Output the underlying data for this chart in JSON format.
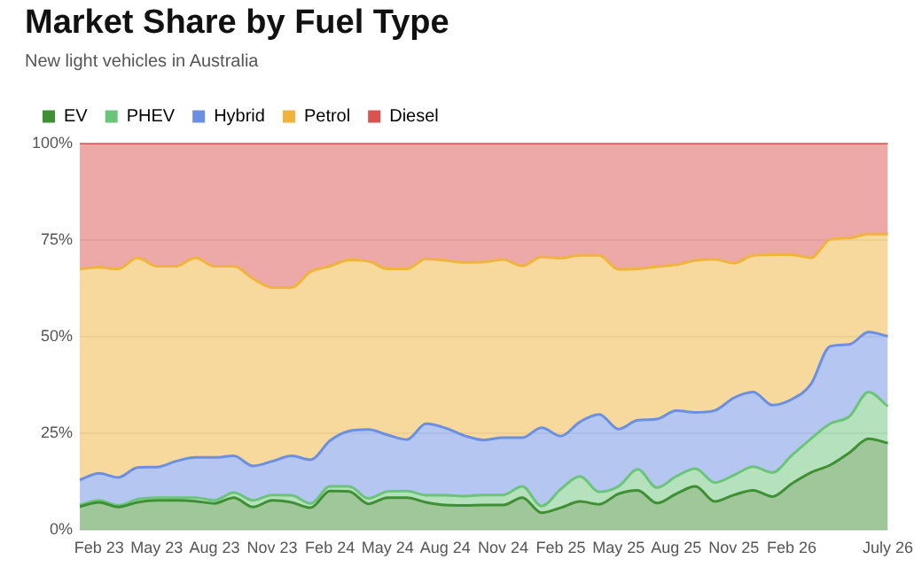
{
  "chart_data": {
    "type": "area",
    "title": "Market Share by Fuel Type",
    "subtitle": "New light vehicles in Australia",
    "stacked": true,
    "grid": "y",
    "legend": "top left",
    "marker": "none",
    "categories": [
      null,
      "Feb 23",
      null,
      null,
      "May 23",
      null,
      null,
      "Aug 23",
      null,
      null,
      "Nov 23",
      null,
      null,
      "Feb 24",
      null,
      null,
      "May 24",
      null,
      null,
      "Aug 24",
      null,
      null,
      "Nov 24",
      null,
      null,
      "Feb 25",
      null,
      null,
      "May 25",
      null,
      null,
      "Aug 25",
      null,
      null,
      "Nov 25",
      null,
      null,
      "Feb 26",
      null,
      null,
      null,
      null,
      "July 26"
    ],
    "ylim": [
      0,
      100
    ],
    "yticks": [
      {
        "value": 0,
        "label": "0%"
      },
      {
        "value": 25,
        "label": "25%"
      },
      {
        "value": 50,
        "label": "50%"
      },
      {
        "value": 75,
        "label": "75%"
      },
      {
        "value": 100,
        "label": "100%"
      }
    ],
    "series": [
      {
        "name": "EV",
        "color": "#3f8f34",
        "values": [
          6.1,
          7.2,
          6.0,
          7.2,
          7.7,
          7.7,
          7.5,
          6.9,
          8.4,
          6.0,
          7.7,
          7.2,
          5.8,
          10.1,
          10.0,
          6.8,
          8.4,
          8.4,
          7.2,
          6.5,
          6.4,
          6.5,
          6.5,
          8.4,
          4.5,
          5.8,
          7.4,
          6.7,
          9.4,
          10.3,
          7.0,
          9.4,
          11.3,
          7.4,
          9.1,
          10.3,
          8.7,
          12.0,
          14.9,
          16.8,
          20.0,
          23.6,
          22.5
        ]
      },
      {
        "name": "PHEV",
        "color": "#6cc47a",
        "values": [
          0.4,
          0.5,
          0.4,
          0.8,
          0.7,
          0.7,
          0.9,
          0.8,
          1.3,
          1.7,
          1.4,
          1.8,
          1.1,
          1.2,
          1.3,
          1.4,
          1.6,
          1.7,
          1.8,
          2.5,
          2.4,
          2.6,
          2.6,
          2.9,
          1.7,
          4.8,
          6.5,
          3.2,
          1.9,
          5.4,
          4.0,
          4.5,
          4.6,
          4.9,
          5.1,
          6.1,
          6.2,
          7.3,
          8.7,
          10.7,
          9.4,
          12.1,
          9.5
        ]
      },
      {
        "name": "Hybrid",
        "color": "#6b8fe3",
        "values": [
          6.5,
          7.0,
          7.2,
          8.2,
          7.9,
          9.4,
          10.4,
          11.1,
          9.5,
          8.9,
          8.7,
          10.2,
          11.3,
          11.8,
          14.3,
          17.8,
          14.6,
          13.3,
          18.5,
          17.4,
          15.6,
          14.2,
          14.8,
          12.6,
          20.3,
          13.7,
          14.1,
          20.0,
          14.8,
          12.7,
          17.7,
          17.0,
          14.5,
          18.6,
          20.0,
          19.3,
          17.4,
          14.5,
          14.1,
          20.0,
          18.6,
          15.5,
          18.1
        ]
      },
      {
        "name": "Petrol",
        "color": "#f0b43c",
        "values": [
          54.5,
          53.2,
          53.9,
          54.2,
          51.9,
          50.4,
          51.6,
          49.4,
          49.0,
          48.4,
          44.9,
          43.5,
          48.6,
          45.1,
          44.2,
          43.5,
          42.9,
          44.1,
          42.6,
          43.3,
          44.8,
          46.0,
          46.0,
          44.4,
          44.1,
          46.0,
          43.0,
          41.1,
          41.3,
          39.1,
          39.4,
          37.7,
          39.3,
          39.1,
          34.8,
          35.3,
          38.9,
          37.4,
          32.7,
          27.6,
          27.5,
          25.3,
          26.4
        ]
      },
      {
        "name": "Diesel",
        "color": "#d9534f",
        "values": [
          32.5,
          32.1,
          32.5,
          29.6,
          31.8,
          31.8,
          29.6,
          31.8,
          31.8,
          35.0,
          37.3,
          37.3,
          33.2,
          31.8,
          30.2,
          30.5,
          32.5,
          32.5,
          29.9,
          30.3,
          30.8,
          30.7,
          30.1,
          31.7,
          29.4,
          29.7,
          29.0,
          29.0,
          32.6,
          32.5,
          31.9,
          31.4,
          30.3,
          30.0,
          31.0,
          29.0,
          28.8,
          28.8,
          29.6,
          24.9,
          24.5,
          23.5,
          23.5
        ]
      }
    ]
  }
}
